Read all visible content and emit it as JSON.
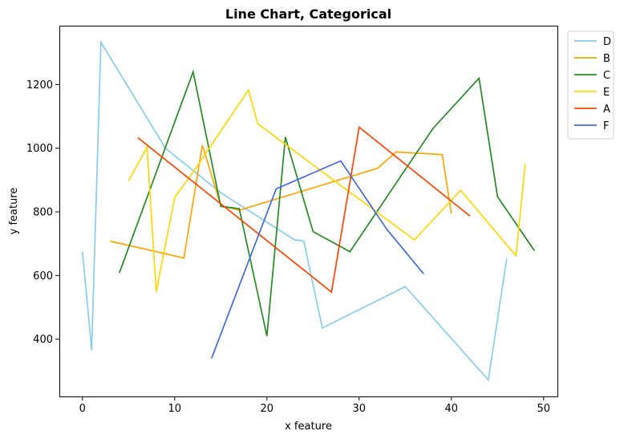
{
  "chart_data": {
    "type": "line",
    "title": "Line Chart, Categorical",
    "xlabel": "x feature",
    "ylabel": "y feature",
    "xlim": [
      -2.5,
      51.5
    ],
    "ylim": [
      220,
      1385
    ],
    "xticks": [
      0,
      10,
      20,
      30,
      40,
      50
    ],
    "yticks": [
      400,
      600,
      800,
      1000,
      1200
    ],
    "grid": false,
    "legend_position": "outside-right",
    "series": [
      {
        "name": "D",
        "color": "#87CEEB",
        "points": [
          [
            0,
            675
          ],
          [
            1,
            365
          ],
          [
            2,
            1333
          ],
          [
            9,
            1000
          ],
          [
            15,
            860
          ],
          [
            23,
            712
          ],
          [
            24,
            708
          ],
          [
            26,
            435
          ],
          [
            35,
            565
          ],
          [
            44,
            272
          ],
          [
            46,
            653
          ]
        ]
      },
      {
        "name": "B",
        "color": "#FFA500",
        "points": [
          [
            3,
            708
          ],
          [
            11,
            655
          ],
          [
            13,
            1010
          ],
          [
            15,
            820
          ],
          [
            17,
            805
          ],
          [
            32,
            937
          ],
          [
            34,
            988
          ],
          [
            39,
            980
          ],
          [
            40,
            795
          ]
        ]
      },
      {
        "name": "C",
        "color": "#228B22",
        "points": [
          [
            4,
            608
          ],
          [
            12,
            1240
          ],
          [
            15,
            817
          ],
          [
            17,
            810
          ],
          [
            20,
            410
          ],
          [
            22,
            1035
          ],
          [
            25,
            738
          ],
          [
            29,
            675
          ],
          [
            38,
            1062
          ],
          [
            43,
            1220
          ],
          [
            45,
            848
          ],
          [
            49,
            678
          ]
        ]
      },
      {
        "name": "E",
        "color": "#FFD700",
        "points": [
          [
            5,
            897
          ],
          [
            7,
            1003
          ],
          [
            8,
            549
          ],
          [
            10,
            845
          ],
          [
            12,
            925
          ],
          [
            18,
            1183
          ],
          [
            19,
            1077
          ],
          [
            28,
            883
          ],
          [
            36,
            712
          ],
          [
            41,
            868
          ],
          [
            47,
            662
          ],
          [
            48,
            950
          ]
        ]
      },
      {
        "name": "A",
        "color": "#FF4500",
        "points": [
          [
            6,
            1033
          ],
          [
            27,
            548
          ],
          [
            30,
            1066
          ],
          [
            42,
            787
          ]
        ]
      },
      {
        "name": "F",
        "color": "#4169E1",
        "points": [
          [
            14,
            340
          ],
          [
            21,
            872
          ],
          [
            28,
            960
          ],
          [
            33,
            745
          ],
          [
            37,
            605
          ]
        ]
      }
    ]
  }
}
